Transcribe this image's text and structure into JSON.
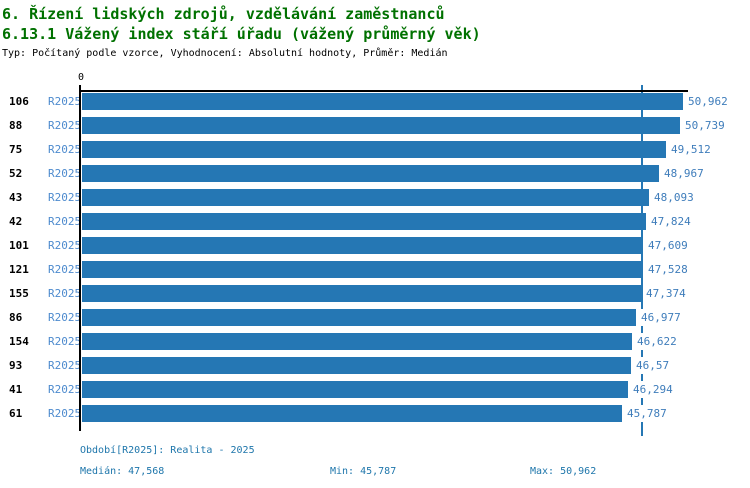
{
  "header": {
    "title": "6. Řízení lidských zdrojů, vzdělávání zaměstnanců",
    "subtitle": "6.13.1 Vážený index stáří úřadu (vážený průměrný věk)",
    "meta": "Typ: Počítaný podle vzorce, Vyhodnocení: Absolutní hodnoty, Průměr: Medián"
  },
  "colors": {
    "title_green": "#007100",
    "bar_blue": "#2577b4",
    "period_blue": "#4e8bce",
    "value_blue": "#3f7dbb",
    "footer_blue": "#1e76ab",
    "axis_black": "#000000"
  },
  "chart_data": {
    "type": "bar",
    "orientation": "horizontal",
    "title": "6.13.1 Vážený index stáří úřadu (vážený průměrný věk)",
    "xlabel": "",
    "ylabel": "",
    "x_axis": {
      "min": 0,
      "max": 51.47,
      "origin_tick_label": "0",
      "grid": false
    },
    "median": {
      "value": 47.568,
      "label": "47,568"
    },
    "rows": [
      {
        "id": "106",
        "period": "R2025",
        "value": 50.962,
        "value_label": "50,962"
      },
      {
        "id": "88",
        "period": "R2025",
        "value": 50.739,
        "value_label": "50,739"
      },
      {
        "id": "75",
        "period": "R2025",
        "value": 49.512,
        "value_label": "49,512"
      },
      {
        "id": "52",
        "period": "R2025",
        "value": 48.967,
        "value_label": "48,967"
      },
      {
        "id": "43",
        "period": "R2025",
        "value": 48.093,
        "value_label": "48,093"
      },
      {
        "id": "42",
        "period": "R2025",
        "value": 47.824,
        "value_label": "47,824"
      },
      {
        "id": "101",
        "period": "R2025",
        "value": 47.609,
        "value_label": "47,609"
      },
      {
        "id": "121",
        "period": "R2025",
        "value": 47.528,
        "value_label": "47,528"
      },
      {
        "id": "155",
        "period": "R2025",
        "value": 47.374,
        "value_label": "47,374"
      },
      {
        "id": "86",
        "period": "R2025",
        "value": 46.977,
        "value_label": "46,977"
      },
      {
        "id": "154",
        "period": "R2025",
        "value": 46.622,
        "value_label": "46,622"
      },
      {
        "id": "93",
        "period": "R2025",
        "value": 46.57,
        "value_label": "46,57"
      },
      {
        "id": "41",
        "period": "R2025",
        "value": 46.294,
        "value_label": "46,294"
      },
      {
        "id": "61",
        "period": "R2025",
        "value": 45.787,
        "value_label": "45,787"
      }
    ]
  },
  "footer": {
    "period_line": "Období[R2025]: Realita - 2025",
    "median_label": "Medián: 47,568",
    "min_label": "Min: 45,787",
    "max_label": "Max: 50,962"
  }
}
